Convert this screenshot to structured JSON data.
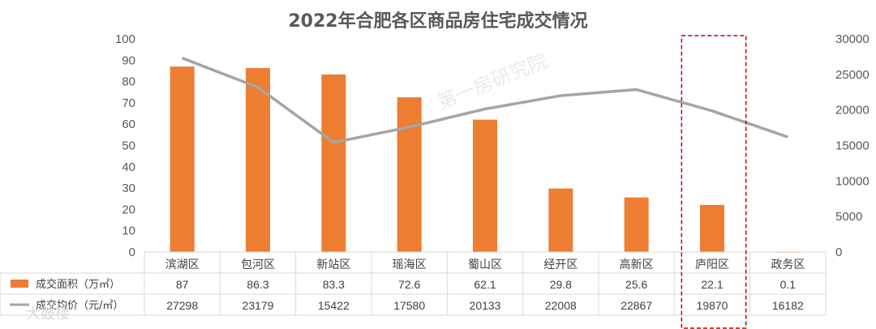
{
  "chart_data": {
    "type": "bar",
    "title": "2022年合肥各区商品房住宅成交情况",
    "categories": [
      "滨湖区",
      "包河区",
      "新站区",
      "瑶海区",
      "蜀山区",
      "经开区",
      "高新区",
      "庐阳区",
      "政务区"
    ],
    "series": [
      {
        "name": "成交面积（万㎡）",
        "type": "bar",
        "axis": "left",
        "color": "#ED7D31",
        "values": [
          87,
          86.3,
          83.3,
          72.6,
          62.1,
          29.8,
          25.6,
          22.1,
          0.1
        ],
        "labels": [
          "87",
          "86.3",
          "83.3",
          "72.6",
          "62.1",
          "29.8",
          "25.6",
          "22.1",
          "0.1"
        ]
      },
      {
        "name": "成交均价（元/㎡）",
        "type": "line",
        "axis": "right",
        "color": "#A5A5A5",
        "values": [
          27298,
          23179,
          15422,
          17580,
          20133,
          22008,
          22867,
          19870,
          16182
        ],
        "labels": [
          "27298",
          "23179",
          "15422",
          "17580",
          "20133",
          "22008",
          "22867",
          "19870",
          "16182"
        ]
      }
    ],
    "y_left": {
      "min": 0,
      "max": 100,
      "step": 10
    },
    "y_right": {
      "min": 0,
      "max": 30000,
      "step": 5000
    },
    "y_left_ticks": [
      "0",
      "10",
      "20",
      "30",
      "40",
      "50",
      "60",
      "70",
      "80",
      "90",
      "100"
    ],
    "y_right_ticks": [
      "0",
      "5000",
      "10000",
      "15000",
      "20000",
      "25000",
      "30000"
    ],
    "grid": false,
    "data_table": true,
    "highlight_category": "庐阳区",
    "highlight_color": "#C00000",
    "watermark": "第一房研究院",
    "source_mark": "大鼓楼"
  }
}
